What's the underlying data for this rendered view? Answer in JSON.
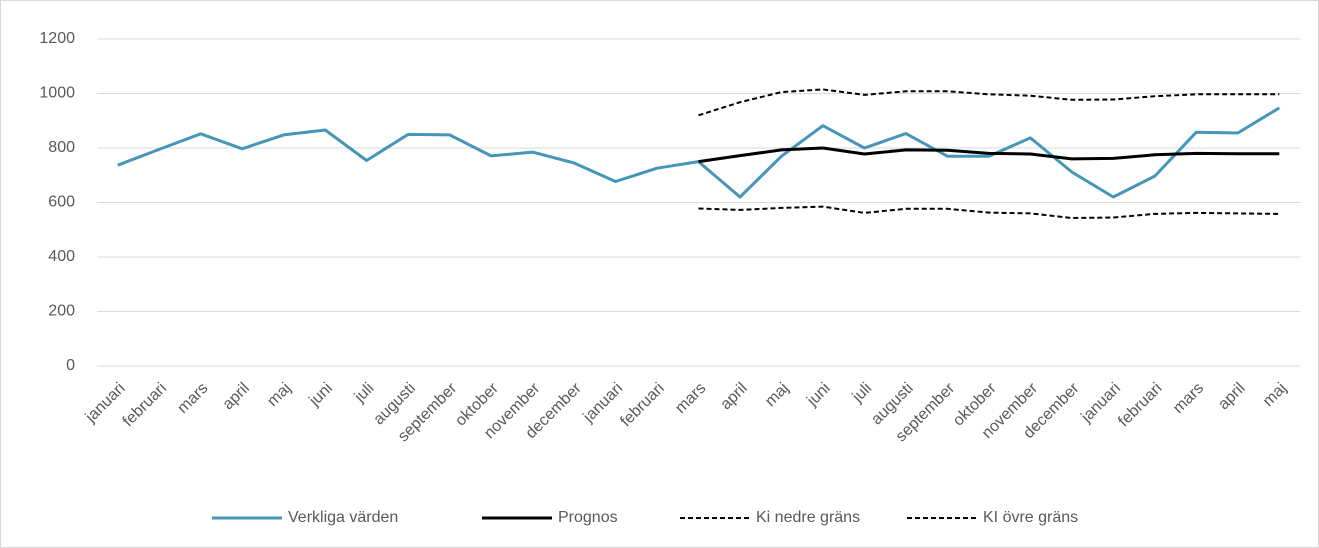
{
  "chart_data": {
    "type": "line",
    "categories": [
      "januari",
      "februari",
      "mars",
      "april",
      "maj",
      "juni",
      "juli",
      "augusti",
      "september",
      "oktober",
      "november",
      "december",
      "januari",
      "februari",
      "mars",
      "april",
      "maj",
      "juni",
      "juli",
      "augusti",
      "september",
      "oktober",
      "november",
      "december",
      "januari",
      "februari",
      "mars",
      "april",
      "maj"
    ],
    "series": [
      {
        "name": "Verkliga värden",
        "color": "#4596b7",
        "dashed": false,
        "values": [
          737,
          795,
          852,
          797,
          848,
          866,
          754,
          850,
          848,
          771,
          785,
          745,
          677,
          726,
          750,
          620,
          770,
          882,
          800,
          853,
          770,
          770,
          837,
          712,
          620,
          697,
          858,
          855,
          947
        ]
      },
      {
        "name": "Prognos",
        "color": "#000000",
        "dashed": false,
        "values": [
          null,
          null,
          null,
          null,
          null,
          null,
          null,
          null,
          null,
          null,
          null,
          null,
          null,
          null,
          750,
          772,
          793,
          800,
          778,
          793,
          792,
          780,
          778,
          760,
          762,
          775,
          780,
          779,
          779
        ]
      },
      {
        "name": "Ki nedre gräns",
        "color": "#000000",
        "dashed": true,
        "values": [
          null,
          null,
          null,
          null,
          null,
          null,
          null,
          null,
          null,
          null,
          null,
          null,
          null,
          null,
          578,
          573,
          580,
          585,
          562,
          577,
          577,
          563,
          560,
          543,
          545,
          558,
          562,
          560,
          558
        ]
      },
      {
        "name": "KI övre gräns",
        "color": "#000000",
        "dashed": true,
        "values": [
          null,
          null,
          null,
          null,
          null,
          null,
          null,
          null,
          null,
          null,
          null,
          null,
          null,
          null,
          920,
          968,
          1005,
          1015,
          995,
          1008,
          1008,
          997,
          992,
          977,
          978,
          990,
          997,
          997,
          997
        ]
      }
    ],
    "ylim": [
      0,
      1200
    ],
    "yticks": [
      0,
      200,
      400,
      600,
      800,
      1000,
      1200
    ],
    "grid": true,
    "legend": "bottom"
  }
}
